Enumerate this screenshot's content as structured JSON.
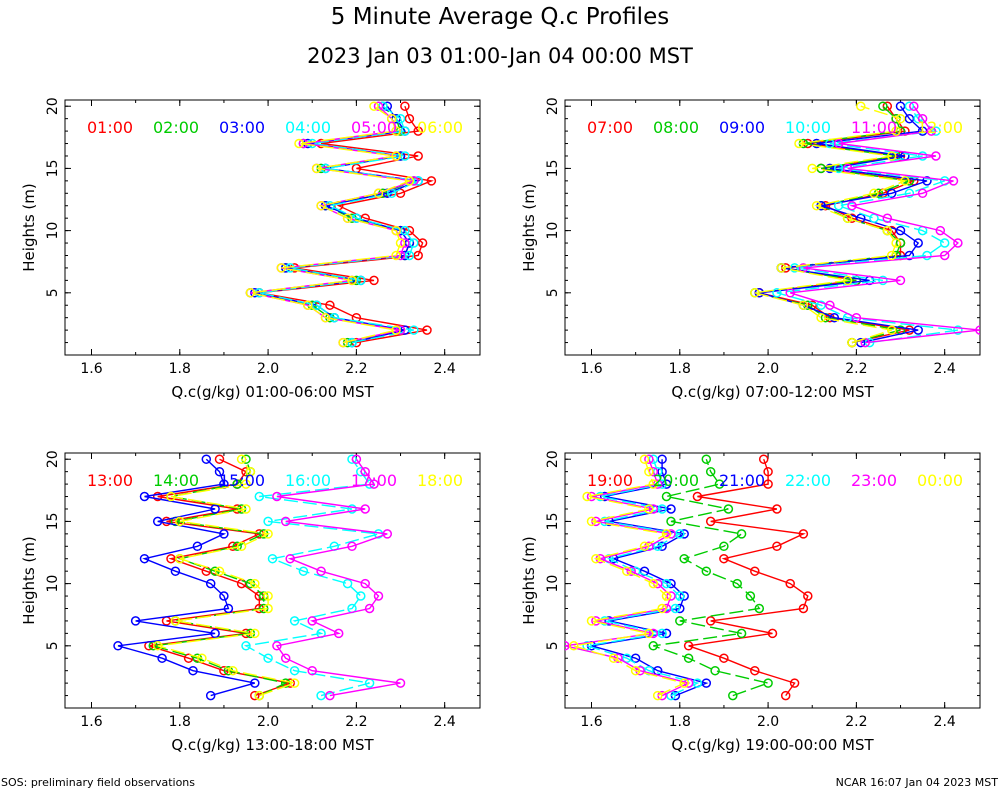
{
  "title": "5 Minute Average Q.c Profiles",
  "subtitle": "2023 Jan 03 01:00-Jan 04 00:00 MST",
  "footer_left": "SOS: preliminary field observations",
  "footer_right": "NCAR 16:07 Jan 04 2023 MST",
  "colors": [
    "#ff0000",
    "#00cc00",
    "#0000ff",
    "#00ffff",
    "#ff00ff",
    "#ffff00"
  ],
  "chart_data": [
    {
      "type": "line",
      "xlabel": "Q.c(g/kg) 01:00-06:00 MST",
      "ylabel": "Heights (m)",
      "xlim": [
        1.54,
        2.48
      ],
      "ylim": [
        0,
        20.5
      ],
      "xticks": [
        "1.6",
        "1.8",
        "2.0",
        "2.2",
        "2.4"
      ],
      "yticks": [
        "5",
        "10",
        "15",
        "20"
      ],
      "heights": [
        1,
        2,
        3,
        4,
        5,
        6,
        7,
        8,
        9,
        10,
        11,
        12,
        13,
        14,
        15,
        16,
        17,
        18,
        19,
        20
      ],
      "series": [
        {
          "name": "01:00",
          "values": [
            2.2,
            2.36,
            2.2,
            2.14,
            1.98,
            2.24,
            2.06,
            2.34,
            2.35,
            2.32,
            2.22,
            2.16,
            2.3,
            2.37,
            2.2,
            2.34,
            2.12,
            2.34,
            2.32,
            2.31
          ]
        },
        {
          "name": "02:00",
          "values": [
            2.18,
            2.3,
            2.14,
            2.1,
            1.96,
            2.2,
            2.04,
            2.31,
            2.32,
            2.3,
            2.19,
            2.13,
            2.26,
            2.33,
            2.12,
            2.3,
            2.08,
            2.3,
            2.29,
            2.26
          ]
        },
        {
          "name": "03:00",
          "values": [
            2.19,
            2.31,
            2.15,
            2.11,
            1.97,
            2.21,
            2.04,
            2.31,
            2.32,
            2.3,
            2.2,
            2.13,
            2.27,
            2.34,
            2.13,
            2.3,
            2.09,
            2.31,
            2.29,
            2.27
          ]
        },
        {
          "name": "04:00",
          "values": [
            2.19,
            2.33,
            2.15,
            2.11,
            1.98,
            2.21,
            2.05,
            2.32,
            2.33,
            2.31,
            2.2,
            2.14,
            2.28,
            2.34,
            2.13,
            2.31,
            2.1,
            2.31,
            2.3,
            2.26
          ]
        },
        {
          "name": "05:00",
          "values": [
            2.17,
            2.3,
            2.13,
            2.09,
            1.96,
            2.19,
            2.03,
            2.3,
            2.31,
            2.29,
            2.18,
            2.12,
            2.25,
            2.33,
            2.11,
            2.29,
            2.08,
            2.29,
            2.28,
            2.25
          ]
        },
        {
          "name": "06:00",
          "values": [
            2.17,
            2.29,
            2.13,
            2.09,
            1.96,
            2.19,
            2.03,
            2.29,
            2.3,
            2.29,
            2.18,
            2.12,
            2.25,
            2.32,
            2.11,
            2.29,
            2.07,
            2.29,
            2.28,
            2.24
          ]
        }
      ]
    },
    {
      "type": "line",
      "xlabel": "Q.c(g/kg) 07:00-12:00 MST",
      "ylabel": "Heights (m)",
      "xlim": [
        1.54,
        2.48
      ],
      "ylim": [
        0,
        20.5
      ],
      "xticks": [
        "1.6",
        "1.8",
        "2.0",
        "2.2",
        "2.4"
      ],
      "yticks": [
        "5",
        "10",
        "15",
        "20"
      ],
      "heights": [
        1,
        2,
        3,
        4,
        5,
        6,
        7,
        8,
        9,
        10,
        11,
        12,
        13,
        14,
        15,
        16,
        17,
        18,
        19,
        20
      ],
      "series": [
        {
          "name": "07:00",
          "values": [
            2.19,
            2.32,
            2.14,
            2.1,
            1.98,
            2.2,
            2.04,
            2.3,
            2.3,
            2.28,
            2.19,
            2.13,
            2.26,
            2.33,
            2.12,
            2.3,
            2.09,
            2.31,
            2.29,
            2.27
          ]
        },
        {
          "name": "08:00",
          "values": [
            2.19,
            2.3,
            2.13,
            2.09,
            1.97,
            2.2,
            2.03,
            2.29,
            2.3,
            2.27,
            2.18,
            2.12,
            2.25,
            2.32,
            2.12,
            2.29,
            2.08,
            2.3,
            2.29,
            2.26
          ]
        },
        {
          "name": "09:00",
          "values": [
            2.21,
            2.34,
            2.15,
            2.08,
            1.98,
            2.23,
            2.03,
            2.32,
            2.34,
            2.3,
            2.21,
            2.12,
            2.28,
            2.36,
            2.14,
            2.31,
            2.11,
            2.35,
            2.32,
            2.3
          ]
        },
        {
          "name": "10:00",
          "values": [
            2.23,
            2.43,
            2.18,
            2.12,
            2.02,
            2.26,
            2.06,
            2.36,
            2.4,
            2.35,
            2.24,
            2.16,
            2.32,
            2.4,
            2.16,
            2.35,
            2.14,
            2.38,
            2.34,
            2.32
          ]
        },
        {
          "name": "11:00",
          "values": [
            2.22,
            2.48,
            2.2,
            2.14,
            2.05,
            2.3,
            2.08,
            2.4,
            2.43,
            2.39,
            2.27,
            2.19,
            2.35,
            2.42,
            2.18,
            2.38,
            2.16,
            2.37,
            2.35,
            2.33
          ]
        },
        {
          "name": "12:00",
          "values": [
            2.19,
            2.28,
            2.12,
            2.08,
            1.97,
            2.18,
            2.03,
            2.28,
            2.29,
            2.27,
            2.18,
            2.11,
            2.24,
            2.31,
            2.1,
            2.28,
            2.07,
            2.29,
            2.3,
            2.21
          ]
        }
      ]
    },
    {
      "type": "line",
      "xlabel": "Q.c(g/kg) 13:00-18:00 MST",
      "ylabel": "Heights (m)",
      "xlim": [
        1.54,
        2.48
      ],
      "ylim": [
        0,
        20.5
      ],
      "xticks": [
        "1.6",
        "1.8",
        "2.0",
        "2.2",
        "2.4"
      ],
      "yticks": [
        "5",
        "10",
        "15",
        "20"
      ],
      "heights": [
        1,
        2,
        3,
        4,
        5,
        6,
        7,
        8,
        9,
        10,
        11,
        12,
        13,
        14,
        15,
        16,
        17,
        18,
        19,
        20
      ],
      "series": [
        {
          "name": "13:00",
          "values": [
            1.97,
            2.05,
            1.9,
            1.82,
            1.73,
            1.95,
            1.77,
            1.98,
            1.98,
            1.94,
            1.86,
            1.78,
            1.92,
            1.98,
            1.77,
            1.93,
            1.75,
            1.93,
            1.95,
            1.89
          ]
        },
        {
          "name": "14:00",
          "values": [
            1.98,
            2.04,
            1.91,
            1.84,
            1.74,
            1.96,
            1.79,
            1.99,
            1.99,
            1.96,
            1.88,
            1.8,
            1.93,
            1.99,
            1.79,
            1.94,
            1.78,
            1.93,
            1.96,
            1.95
          ]
        },
        {
          "name": "15:00",
          "values": [
            1.87,
            1.97,
            1.83,
            1.76,
            1.66,
            1.88,
            1.7,
            1.91,
            1.9,
            1.87,
            1.79,
            1.72,
            1.84,
            1.9,
            1.75,
            1.88,
            1.72,
            1.9,
            1.89,
            1.86
          ]
        },
        {
          "name": "16:00",
          "values": [
            2.12,
            2.23,
            2.06,
            2.0,
            1.95,
            2.12,
            2.06,
            2.19,
            2.21,
            2.18,
            2.08,
            2.01,
            2.15,
            2.25,
            2.0,
            2.19,
            1.98,
            2.23,
            2.21,
            2.19
          ]
        },
        {
          "name": "17:00",
          "values": [
            2.14,
            2.3,
            2.1,
            2.04,
            2.02,
            2.16,
            2.1,
            2.23,
            2.25,
            2.22,
            2.12,
            2.05,
            2.19,
            2.27,
            2.04,
            2.22,
            2.02,
            2.24,
            2.22,
            2.2
          ]
        },
        {
          "name": "18:00",
          "values": [
            1.98,
            2.06,
            1.92,
            1.85,
            1.75,
            1.97,
            1.79,
            2.0,
            2.0,
            1.97,
            1.89,
            1.8,
            1.94,
            2.0,
            1.8,
            1.95,
            1.78,
            1.95,
            1.96,
            1.94
          ]
        }
      ]
    },
    {
      "type": "line",
      "xlabel": "Q.c(g/kg) 19:00-00:00 MST",
      "ylabel": "Heights (m)",
      "xlim": [
        1.54,
        2.48
      ],
      "ylim": [
        0,
        20.5
      ],
      "xticks": [
        "1.6",
        "1.8",
        "2.0",
        "2.2",
        "2.4"
      ],
      "yticks": [
        "5",
        "10",
        "15",
        "20"
      ],
      "heights": [
        1,
        2,
        3,
        4,
        5,
        6,
        7,
        8,
        9,
        10,
        11,
        12,
        13,
        14,
        15,
        16,
        17,
        18,
        19,
        20
      ],
      "series": [
        {
          "name": "19:00",
          "values": [
            2.04,
            2.06,
            1.97,
            1.9,
            1.82,
            2.01,
            1.87,
            2.08,
            2.09,
            2.05,
            1.97,
            1.9,
            2.02,
            2.08,
            1.87,
            2.02,
            1.84,
            2.0,
            2.0,
            1.99
          ]
        },
        {
          "name": "20:00",
          "values": [
            1.92,
            2.0,
            1.88,
            1.82,
            1.74,
            1.94,
            1.8,
            1.98,
            1.96,
            1.93,
            1.86,
            1.81,
            1.9,
            1.94,
            1.78,
            1.91,
            1.77,
            1.89,
            1.87,
            1.86
          ]
        },
        {
          "name": "21:00",
          "values": [
            1.79,
            1.86,
            1.75,
            1.7,
            1.6,
            1.77,
            1.64,
            1.8,
            1.81,
            1.78,
            1.72,
            1.65,
            1.76,
            1.81,
            1.64,
            1.78,
            1.63,
            1.77,
            1.76,
            1.76
          ]
        },
        {
          "name": "22:00",
          "values": [
            1.78,
            1.84,
            1.73,
            1.68,
            1.59,
            1.76,
            1.63,
            1.79,
            1.8,
            1.77,
            1.7,
            1.64,
            1.75,
            1.8,
            1.63,
            1.76,
            1.62,
            1.76,
            1.75,
            1.74
          ]
        },
        {
          "name": "23:00",
          "values": [
            1.76,
            1.82,
            1.71,
            1.66,
            1.54,
            1.74,
            1.61,
            1.77,
            1.78,
            1.75,
            1.69,
            1.62,
            1.73,
            1.78,
            1.61,
            1.74,
            1.6,
            1.75,
            1.74,
            1.73
          ]
        },
        {
          "name": "00:00",
          "values": [
            1.75,
            1.81,
            1.7,
            1.65,
            1.56,
            1.73,
            1.6,
            1.76,
            1.77,
            1.74,
            1.68,
            1.61,
            1.72,
            1.77,
            1.6,
            1.73,
            1.59,
            1.74,
            1.73,
            1.72
          ]
        }
      ]
    }
  ]
}
